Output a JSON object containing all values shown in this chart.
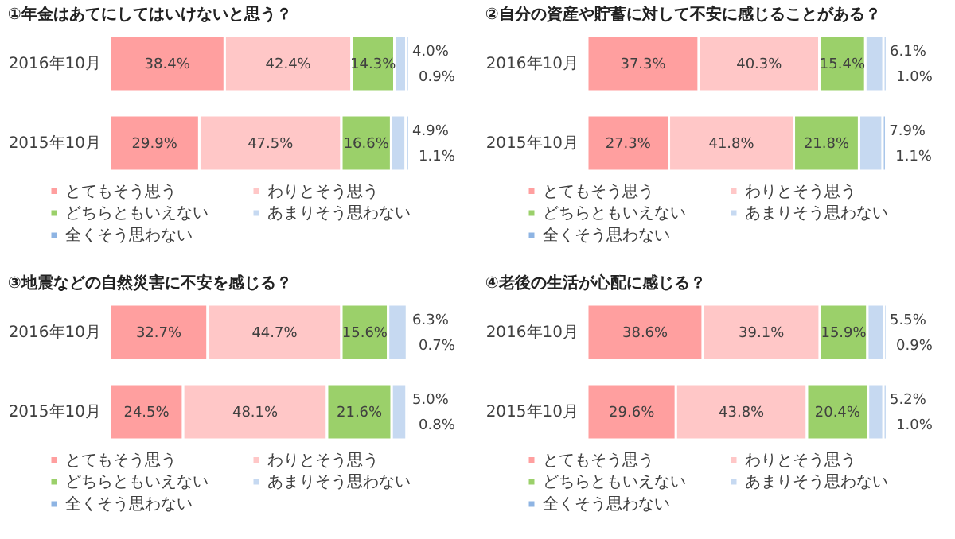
{
  "chart_data": [
    {
      "type": "bar",
      "orientation": "horizontal",
      "stacked": true,
      "legend": "bottom",
      "tick_labels": "y",
      "title": "①年金はあてにしてはいけないと思う？",
      "categories": [
        "2016年10月",
        "2015年10月"
      ],
      "series": [
        {
          "name": "とてもそう思う",
          "color": "#ff9f9f",
          "values": [
            38.4,
            29.9
          ],
          "value_labels": [
            "38.4%",
            "29.9%"
          ]
        },
        {
          "name": "わりとそう思う",
          "color": "#ffc7c7",
          "values": [
            42.4,
            47.5
          ],
          "value_labels": [
            "42.4%",
            "47.5%"
          ]
        },
        {
          "name": "どちらともいえない",
          "color": "#9bd06a",
          "values": [
            14.3,
            16.6
          ],
          "value_labels": [
            "14.3%",
            "16.6%"
          ]
        },
        {
          "name": "あまりそう思わない",
          "color": "#c6d9f1",
          "values": [
            4.0,
            4.9
          ],
          "value_labels": [
            "4.0%",
            "4.9%"
          ]
        },
        {
          "name": "全くそう思わない",
          "color": "#8eb4e3",
          "values": [
            0.9,
            1.1
          ],
          "value_labels": [
            "0.9%",
            "1.1%"
          ]
        }
      ]
    },
    {
      "type": "bar",
      "orientation": "horizontal",
      "stacked": true,
      "legend": "bottom",
      "tick_labels": "y",
      "title": "②自分の資産や貯蓄に対して不安に感じることがある？",
      "categories": [
        "2016年10月",
        "2015年10月"
      ],
      "series": [
        {
          "name": "とてもそう思う",
          "color": "#ff9f9f",
          "values": [
            37.3,
            27.3
          ],
          "value_labels": [
            "37.3%",
            "27.3%"
          ]
        },
        {
          "name": "わりとそう思う",
          "color": "#ffc7c7",
          "values": [
            40.3,
            41.8
          ],
          "value_labels": [
            "40.3%",
            "41.8%"
          ]
        },
        {
          "name": "どちらともいえない",
          "color": "#9bd06a",
          "values": [
            15.4,
            21.8
          ],
          "value_labels": [
            "15.4%",
            "21.8%"
          ]
        },
        {
          "name": "あまりそう思わない",
          "color": "#c6d9f1",
          "values": [
            6.1,
            7.9
          ],
          "value_labels": [
            "6.1%",
            "7.9%"
          ]
        },
        {
          "name": "全くそう思わない",
          "color": "#8eb4e3",
          "values": [
            1.0,
            1.1
          ],
          "value_labels": [
            "1.0%",
            "1.1%"
          ]
        }
      ]
    },
    {
      "type": "bar",
      "orientation": "horizontal",
      "stacked": true,
      "legend": "bottom",
      "tick_labels": "y",
      "title": "③地震などの自然災害に不安を感じる？",
      "categories": [
        "2016年10月",
        "2015年10月"
      ],
      "series": [
        {
          "name": "とてもそう思う",
          "color": "#ff9f9f",
          "values": [
            32.7,
            24.5
          ],
          "value_labels": [
            "32.7%",
            "24.5%"
          ]
        },
        {
          "name": "わりとそう思う",
          "color": "#ffc7c7",
          "values": [
            44.7,
            48.1
          ],
          "value_labels": [
            "44.7%",
            "48.1%"
          ]
        },
        {
          "name": "どちらともいえない",
          "color": "#9bd06a",
          "values": [
            15.6,
            21.6
          ],
          "value_labels": [
            "15.6%",
            "21.6%"
          ]
        },
        {
          "name": "あまりそう思わない",
          "color": "#c6d9f1",
          "values": [
            6.3,
            5.0
          ],
          "value_labels": [
            "6.3%",
            "5.0%"
          ]
        },
        {
          "name": "全くそう思わない",
          "color": "#8eb4e3",
          "values": [
            0.7,
            0.8
          ],
          "value_labels": [
            "0.7%",
            "0.8%"
          ]
        }
      ]
    },
    {
      "type": "bar",
      "orientation": "horizontal",
      "stacked": true,
      "legend": "bottom",
      "tick_labels": "y",
      "title": "④老後の生活が心配に感じる？",
      "categories": [
        "2016年10月",
        "2015年10月"
      ],
      "series": [
        {
          "name": "とてもそう思う",
          "color": "#ff9f9f",
          "values": [
            38.6,
            29.6
          ],
          "value_labels": [
            "38.6%",
            "29.6%"
          ]
        },
        {
          "name": "わりとそう思う",
          "color": "#ffc7c7",
          "values": [
            39.1,
            43.8
          ],
          "value_labels": [
            "39.1%",
            "43.8%"
          ]
        },
        {
          "name": "どちらともいえない",
          "color": "#9bd06a",
          "values": [
            15.9,
            20.4
          ],
          "value_labels": [
            "15.9%",
            "20.4%"
          ]
        },
        {
          "name": "あまりそう思わない",
          "color": "#c6d9f1",
          "values": [
            5.5,
            5.2
          ],
          "value_labels": [
            "5.5%",
            "5.2%"
          ]
        },
        {
          "name": "全くそう思わない",
          "color": "#8eb4e3",
          "values": [
            0.9,
            1.0
          ],
          "value_labels": [
            "0.9%",
            "1.0%"
          ]
        }
      ]
    }
  ]
}
